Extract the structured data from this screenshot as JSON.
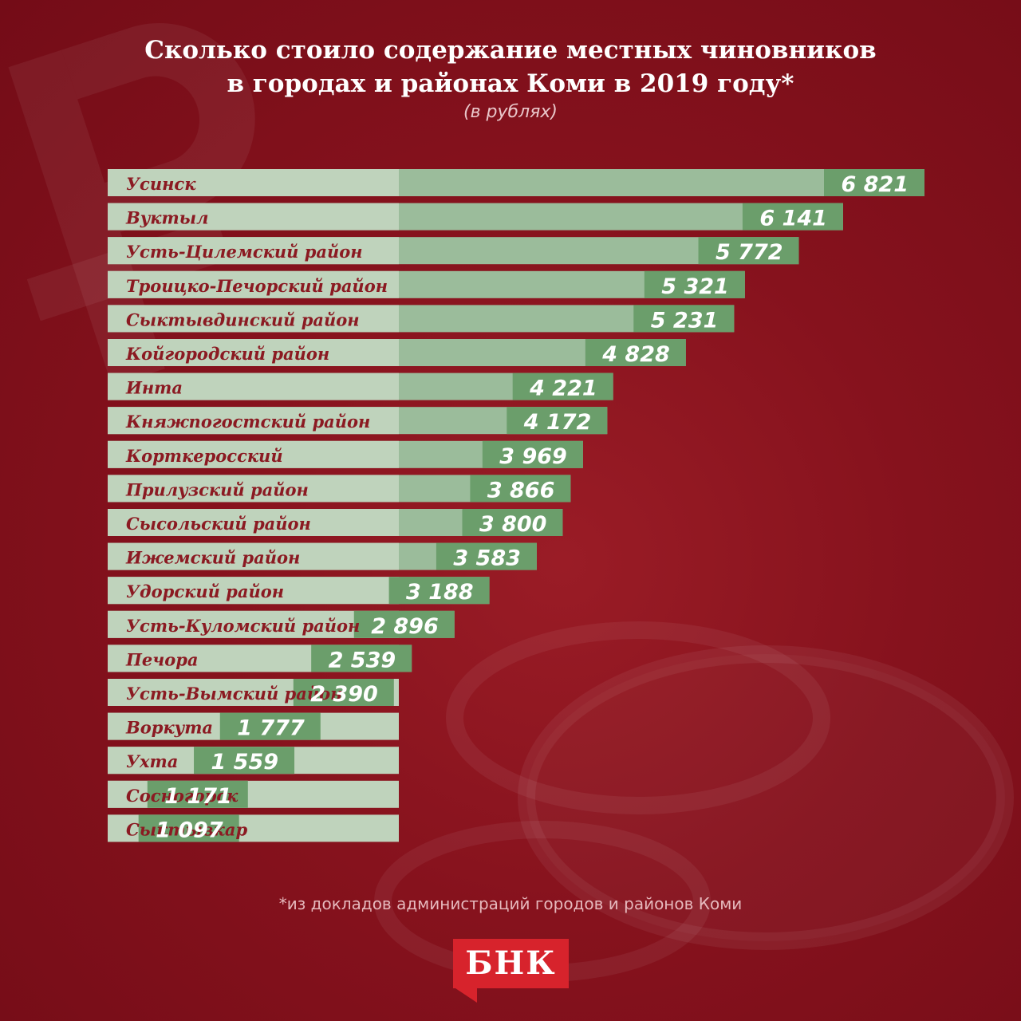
{
  "header": {
    "title_line1": "Сколько стоило содержание местных чиновников",
    "title_line2": "в городах и районах Коми в 2019 году*",
    "subtitle": "(в рублях)"
  },
  "footnote": "*из докладов администраций городов и районов Коми",
  "logo": {
    "text": "БНК",
    "color": "#d7232c"
  },
  "background_icon": "ruble-sign-icon",
  "colors": {
    "label_text": "#8b1a22",
    "label_bg": "#bfd3bc",
    "bar_bg": "#9bbc9b",
    "value_bg": "#6b9e6b",
    "value_text": "#ffffff"
  },
  "chart_data": {
    "type": "bar",
    "orientation": "horizontal",
    "title": "Сколько стоило содержание местных чиновников в городах и районах Коми в 2019 году*",
    "subtitle": "(в рублях)",
    "categories": [
      "Усинск",
      "Вуктыл",
      "Усть-Цилемский район",
      "Троицко-Печорский район",
      "Сыктывдинский район",
      "Койгородский район",
      "Инта",
      "Княжпогостский район",
      "Корткеросский",
      "Прилузский район",
      "Сысольский район",
      "Ижемский район",
      "Удорский район",
      "Усть-Куломский район",
      "Печора",
      "Усть-Вымский район",
      "Воркута",
      "Ухта",
      "Сосногорск",
      "Сыктывкар"
    ],
    "values": [
      6821,
      6141,
      5772,
      5321,
      5231,
      4828,
      4221,
      4172,
      3969,
      3866,
      3800,
      3583,
      3188,
      2896,
      2539,
      2390,
      1777,
      1559,
      1171,
      1097
    ],
    "value_labels": [
      "6 821",
      "6 141",
      "5 772",
      "5 321",
      "5 231",
      "4 828",
      "4 221",
      "4 172",
      "3 969",
      "3 866",
      "3 800",
      "3 583",
      "3 188",
      "2 896",
      "2 539",
      "2 390",
      "1 777",
      "1 559",
      "1 171",
      "1 097"
    ],
    "xlabel": "",
    "ylabel": "",
    "grid": false
  }
}
